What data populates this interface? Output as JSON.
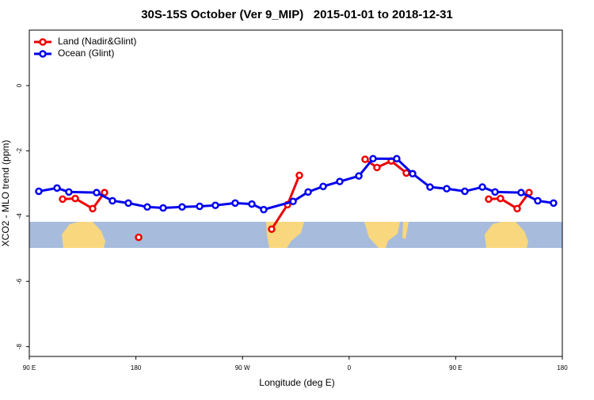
{
  "chart_data": {
    "type": "line",
    "title": "30S-15S October (Ver 9_MIP)   2015-01-01 to 2018-12-31",
    "x_label": "Longitude (deg E)",
    "y_label": "XCO2 - MLO trend (ppm)",
    "xlim": [
      90,
      540
    ],
    "xticks": [
      {
        "value": 90,
        "label": "90 E"
      },
      {
        "value": 180,
        "label": "180"
      },
      {
        "value": 270,
        "label": "90 W"
      },
      {
        "value": 360,
        "label": "0"
      },
      {
        "value": 450,
        "label": "90 E"
      },
      {
        "value": 540,
        "label": "180"
      }
    ],
    "ylim": [
      -8.3,
      1.7
    ],
    "yticks": [
      0,
      -2,
      -4,
      -6,
      -8
    ],
    "legend": "top-left",
    "series": [
      {
        "name": "Land (Nadir&Glint)",
        "color": "#ee0000",
        "x": [
          118.1,
          128.8,
          143.5,
          153.5,
          null,
          182.3,
          null,
          294.6,
          308.0,
          318.0,
          null,
          373.5,
          383.5,
          395.6,
          408.3,
          null,
          477.8,
          487.8,
          501.9,
          511.9
        ],
        "values": [
          -3.48,
          -3.46,
          -3.77,
          -3.28,
          null,
          -4.65,
          null,
          -4.4,
          -3.65,
          -2.75,
          null,
          -2.26,
          -2.51,
          -2.31,
          -2.68,
          null,
          -3.48,
          -3.46,
          -3.77,
          -3.28
        ]
      },
      {
        "name": "Ocean (Glint)",
        "color": "#0000ee",
        "x": [
          98,
          113.4,
          123.4,
          146.8,
          160.2,
          173.6,
          189.6,
          203.0,
          219.0,
          233.8,
          247.1,
          263.8,
          277.9,
          287.9,
          312.7,
          325.4,
          338.1,
          352.1,
          368.2,
          380.2,
          400.2,
          413.6,
          428.3,
          442.4,
          457.7,
          472.5,
          483.2,
          505.2,
          519.3,
          532.6
        ],
        "values": [
          -3.24,
          -3.14,
          -3.26,
          -3.28,
          -3.53,
          -3.6,
          -3.72,
          -3.75,
          -3.72,
          -3.7,
          -3.67,
          -3.6,
          -3.63,
          -3.8,
          -3.55,
          -3.26,
          -3.09,
          -2.94,
          -2.77,
          -2.24,
          -2.24,
          -2.7,
          -3.11,
          -3.16,
          -3.24,
          -3.11,
          -3.26,
          -3.28,
          -3.53,
          -3.6
        ]
      }
    ]
  }
}
